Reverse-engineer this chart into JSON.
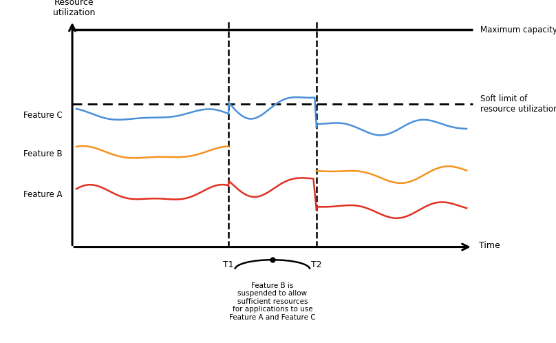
{
  "ylabel": "Resource\nutilization",
  "xlabel": "Time",
  "xlim": [
    0,
    10
  ],
  "ylim": [
    0,
    10
  ],
  "max_capacity_y": 9.6,
  "soft_limit_y": 6.3,
  "t1_x": 3.9,
  "t2_x": 6.1,
  "feature_a_base": 2.3,
  "feature_b_base": 4.1,
  "feature_c_base": 5.8,
  "color_a": "#e03020",
  "color_b": "#f5921e",
  "color_c": "#4a90d9",
  "max_cap_label": "Maximum capacity",
  "soft_limit_label": "Soft limit of\nresource utilization",
  "label_a": "Feature A",
  "label_b": "Feature B",
  "label_c": "Feature C",
  "t1_label": "T1",
  "t2_label": "T2",
  "annotation_text": "Feature B is\nsuspended to allow\nsufficient resources\nfor applications to use\nFeature A and Feature C"
}
